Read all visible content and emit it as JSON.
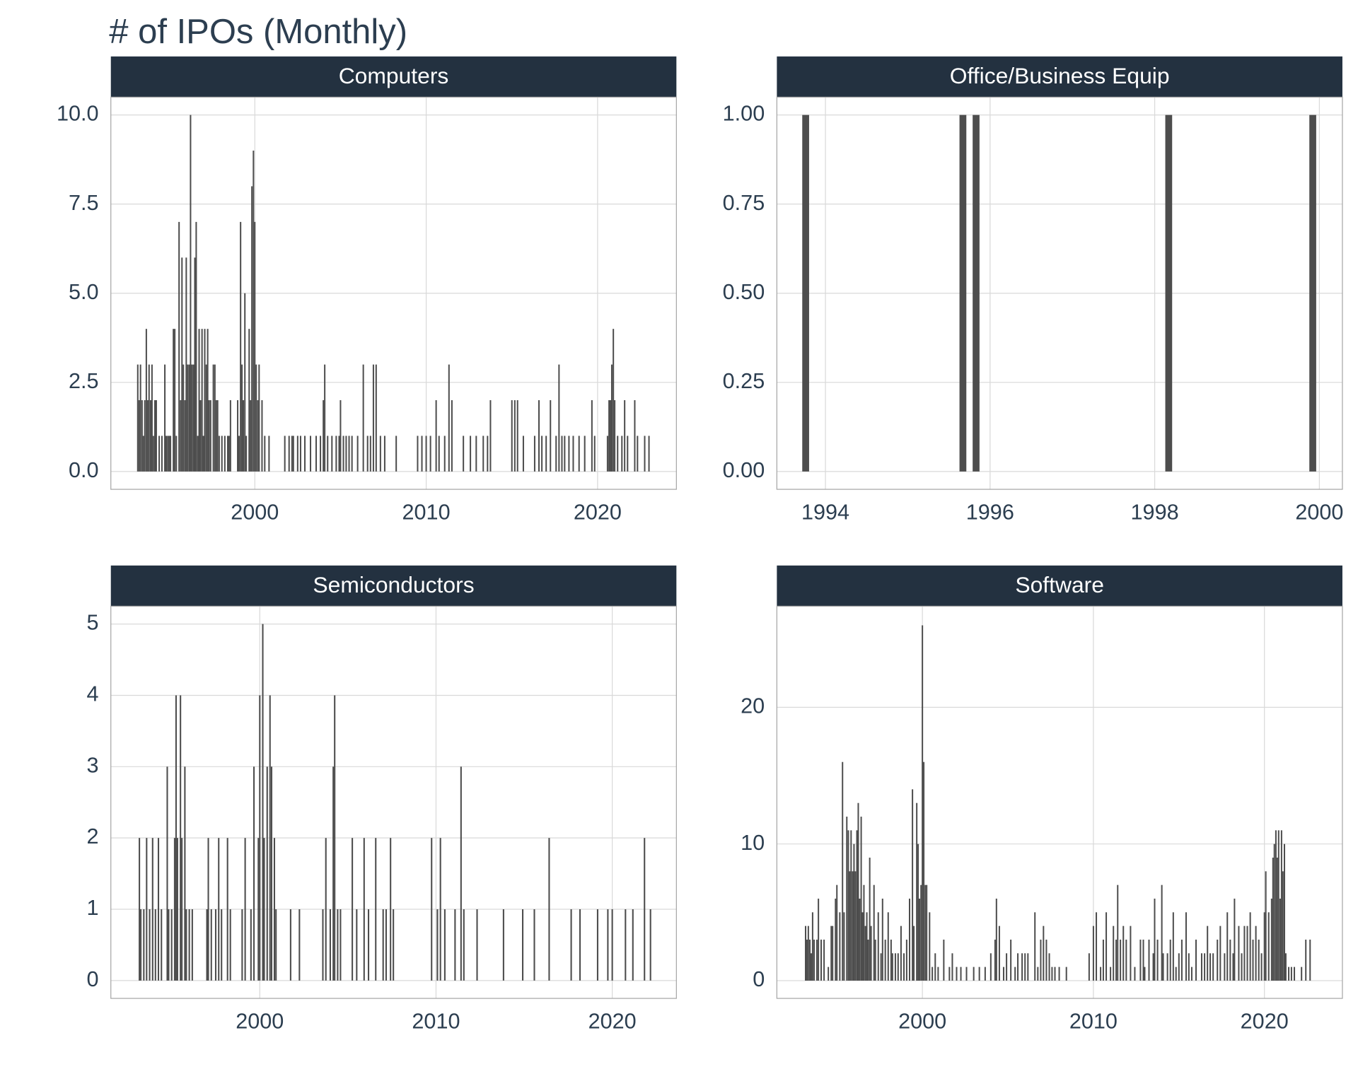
{
  "title": "# of IPOs (Monthly)",
  "chart_data": [
    {
      "type": "bar",
      "title": "Computers",
      "color": "#4d4d4d",
      "grid": true,
      "xlim": [
        1991.6,
        2024.6
      ],
      "xticks": [
        2000,
        2010,
        2020
      ],
      "ylim": [
        -0.5,
        10.5
      ],
      "yticks": [
        {
          "value": 0,
          "label": "0.0"
        },
        {
          "value": 2.5,
          "label": "2.5"
        },
        {
          "value": 5,
          "label": "5.0"
        },
        {
          "value": 7.5,
          "label": "7.5"
        },
        {
          "value": 10,
          "label": "10.0"
        }
      ],
      "x": [
        1993.17,
        1993.25,
        1993.33,
        1993.42,
        1993.5,
        1993.58,
        1993.67,
        1993.75,
        1993.83,
        1993.92,
        1994.0,
        1994.08,
        1994.17,
        1994.25,
        1994.42,
        1994.58,
        1994.75,
        1994.83,
        1994.92,
        1995.0,
        1995.08,
        1995.25,
        1995.33,
        1995.42,
        1995.58,
        1995.67,
        1995.75,
        1995.83,
        1995.92,
        1996.0,
        1996.08,
        1996.17,
        1996.25,
        1996.33,
        1996.42,
        1996.5,
        1996.58,
        1996.67,
        1996.75,
        1996.83,
        1996.92,
        1997.0,
        1997.08,
        1997.17,
        1997.25,
        1997.33,
        1997.42,
        1997.58,
        1997.67,
        1997.75,
        1997.83,
        1997.92,
        1998.08,
        1998.25,
        1998.42,
        1998.5,
        1998.58,
        1999.0,
        1999.08,
        1999.17,
        1999.25,
        1999.33,
        1999.42,
        1999.5,
        1999.67,
        1999.75,
        1999.83,
        1999.92,
        2000.0,
        2000.08,
        2000.17,
        2000.25,
        2000.42,
        2000.58,
        2000.83,
        2001.75,
        2002.0,
        2002.17,
        2002.25,
        2002.5,
        2002.67,
        2002.92,
        2003.25,
        2003.58,
        2003.83,
        2004.0,
        2004.08,
        2004.25,
        2004.5,
        2004.75,
        2004.92,
        2005.0,
        2005.17,
        2005.33,
        2005.5,
        2005.67,
        2006.0,
        2006.33,
        2006.58,
        2006.75,
        2006.92,
        2007.08,
        2007.33,
        2007.58,
        2008.25,
        2009.5,
        2009.75,
        2010.0,
        2010.25,
        2010.58,
        2010.75,
        2011.08,
        2011.33,
        2011.5,
        2012.17,
        2012.58,
        2012.92,
        2013.33,
        2013.58,
        2013.75,
        2015.0,
        2015.17,
        2015.33,
        2015.67,
        2016.33,
        2016.58,
        2016.75,
        2017.0,
        2017.25,
        2017.58,
        2017.75,
        2017.92,
        2018.08,
        2018.33,
        2018.58,
        2018.92,
        2019.25,
        2019.67,
        2019.83,
        2020.58,
        2020.67,
        2020.75,
        2020.83,
        2020.92,
        2021.0,
        2021.17,
        2021.42,
        2021.58,
        2021.75,
        2022.17,
        2022.33,
        2022.75,
        2023.0
      ],
      "values": [
        3,
        2,
        3,
        2,
        1,
        2,
        4,
        2,
        3,
        2,
        3,
        1,
        2,
        2,
        1,
        1,
        3,
        1,
        1,
        1,
        1,
        4,
        4,
        1,
        7,
        2,
        6,
        3,
        2,
        6,
        3,
        3,
        10,
        3,
        3,
        6,
        7,
        1,
        4,
        2,
        4,
        1,
        4,
        3,
        4,
        2,
        2,
        3,
        3,
        2,
        2,
        1,
        1,
        1,
        1,
        1,
        2,
        2,
        1,
        7,
        3,
        2,
        5,
        1,
        4,
        2,
        8,
        9,
        7,
        3,
        2,
        3,
        2,
        1,
        1,
        1,
        1,
        1,
        1,
        1,
        1,
        1,
        1,
        1,
        1,
        2,
        3,
        1,
        1,
        1,
        1,
        2,
        1,
        1,
        1,
        1,
        1,
        3,
        1,
        1,
        3,
        3,
        1,
        1,
        1,
        1,
        1,
        1,
        1,
        2,
        1,
        1,
        3,
        2,
        1,
        1,
        1,
        1,
        1,
        2,
        2,
        2,
        2,
        1,
        1,
        2,
        1,
        1,
        2,
        1,
        3,
        1,
        1,
        1,
        1,
        1,
        1,
        2,
        1,
        1,
        2,
        2,
        3,
        4,
        2,
        1,
        1,
        2,
        1,
        2,
        1,
        1,
        1
      ]
    },
    {
      "type": "bar",
      "title": "Office/Business Equip",
      "color": "#4d4d4d",
      "grid": true,
      "xlim": [
        1993.41,
        2000.28
      ],
      "xticks": [
        1994,
        1996,
        1998,
        2000
      ],
      "ylim": [
        -0.05,
        1.05
      ],
      "yticks": [
        {
          "value": 0,
          "label": "0.00"
        },
        {
          "value": 0.25,
          "label": "0.25"
        },
        {
          "value": 0.5,
          "label": "0.50"
        },
        {
          "value": 0.75,
          "label": "0.75"
        },
        {
          "value": 1,
          "label": "1.00"
        }
      ],
      "x": [
        1993.76,
        1995.67,
        1995.83,
        1998.17,
        1999.92
      ],
      "values": [
        1,
        1,
        1,
        1,
        1
      ]
    },
    {
      "type": "bar",
      "title": "Semiconductors",
      "color": "#4d4d4d",
      "grid": true,
      "xlim": [
        1991.55,
        2023.64
      ],
      "xticks": [
        2000,
        2010,
        2020
      ],
      "ylim": [
        -0.25,
        5.25
      ],
      "yticks": [
        0,
        1,
        2,
        3,
        4,
        5
      ],
      "x": [
        1993.17,
        1993.25,
        1993.42,
        1993.58,
        1993.75,
        1993.92,
        1994.08,
        1994.25,
        1994.42,
        1994.75,
        1994.83,
        1995.0,
        1995.17,
        1995.25,
        1995.33,
        1995.5,
        1995.58,
        1995.75,
        1995.83,
        1996.0,
        1996.17,
        1997.0,
        1997.08,
        1997.25,
        1997.5,
        1997.67,
        1997.83,
        1998.17,
        1998.33,
        1999.0,
        1999.17,
        1999.5,
        1999.67,
        1999.92,
        2000.0,
        2000.17,
        2000.25,
        2000.42,
        2000.58,
        2000.67,
        2000.83,
        2000.92,
        2001.75,
        2002.25,
        2003.58,
        2003.75,
        2004.0,
        2004.17,
        2004.25,
        2004.42,
        2004.58,
        2005.25,
        2005.5,
        2005.92,
        2006.17,
        2006.58,
        2007.0,
        2007.17,
        2007.42,
        2007.58,
        2009.75,
        2010.08,
        2010.25,
        2010.5,
        2011.08,
        2011.42,
        2011.58,
        2012.33,
        2013.83,
        2014.92,
        2015.58,
        2016.42,
        2017.67,
        2018.17,
        2019.17,
        2019.75,
        2020.0,
        2020.75,
        2021.17,
        2021.83,
        2022.17
      ],
      "values": [
        2,
        1,
        1,
        2,
        1,
        2,
        1,
        2,
        1,
        3,
        1,
        1,
        2,
        4,
        2,
        4,
        2,
        3,
        1,
        1,
        1,
        1,
        2,
        1,
        1,
        2,
        1,
        2,
        1,
        1,
        2,
        1,
        3,
        2,
        4,
        5,
        2,
        3,
        4,
        3,
        2,
        1,
        1,
        1,
        1,
        2,
        1,
        3,
        4,
        1,
        1,
        2,
        1,
        2,
        1,
        2,
        1,
        1,
        2,
        1,
        2,
        1,
        2,
        1,
        1,
        3,
        1,
        1,
        1,
        1,
        1,
        2,
        1,
        1,
        1,
        1,
        1,
        1,
        1,
        2,
        1
      ]
    },
    {
      "type": "bar",
      "title": "Software",
      "color": "#4d4d4d",
      "grid": true,
      "xlim": [
        1991.49,
        2024.56
      ],
      "xticks": [
        2000,
        2010,
        2020
      ],
      "ylim": [
        -1.3,
        27.4
      ],
      "yticks": [
        0,
        10,
        20
      ],
      "x": [
        1993.17,
        1993.25,
        1993.33,
        1993.42,
        1993.5,
        1993.58,
        1993.67,
        1993.83,
        1993.92,
        1994.08,
        1994.25,
        1994.5,
        1994.67,
        1994.75,
        1994.92,
        1995.0,
        1995.17,
        1995.33,
        1995.42,
        1995.58,
        1995.67,
        1995.75,
        1995.83,
        1995.92,
        1996.0,
        1996.08,
        1996.17,
        1996.25,
        1996.33,
        1996.42,
        1996.5,
        1996.58,
        1996.67,
        1996.75,
        1996.83,
        1996.92,
        1997.0,
        1997.17,
        1997.25,
        1997.42,
        1997.58,
        1997.67,
        1997.83,
        1998.0,
        1998.17,
        1998.25,
        1998.42,
        1998.58,
        1998.75,
        1998.92,
        1999.08,
        1999.25,
        1999.42,
        1999.5,
        1999.67,
        1999.75,
        1999.83,
        1999.92,
        2000.0,
        2000.08,
        2000.17,
        2000.25,
        2000.42,
        2000.58,
        2000.75,
        2000.92,
        2001.25,
        2001.58,
        2001.75,
        2002.0,
        2002.25,
        2002.58,
        2003.0,
        2003.33,
        2003.67,
        2004.0,
        2004.25,
        2004.33,
        2004.5,
        2004.75,
        2004.92,
        2005.17,
        2005.42,
        2005.58,
        2005.83,
        2006.0,
        2006.17,
        2006.58,
        2006.75,
        2006.92,
        2007.08,
        2007.25,
        2007.42,
        2007.58,
        2007.75,
        2008.0,
        2008.42,
        2009.75,
        2010.0,
        2010.17,
        2010.42,
        2010.58,
        2010.75,
        2011.0,
        2011.17,
        2011.33,
        2011.42,
        2011.58,
        2011.75,
        2011.92,
        2012.17,
        2012.42,
        2012.75,
        2012.92,
        2013.0,
        2013.25,
        2013.5,
        2013.58,
        2013.75,
        2014.0,
        2014.08,
        2014.33,
        2014.5,
        2014.67,
        2014.83,
        2015.0,
        2015.17,
        2015.42,
        2015.58,
        2015.75,
        2016.0,
        2016.33,
        2016.5,
        2016.67,
        2016.83,
        2017.0,
        2017.25,
        2017.42,
        2017.67,
        2017.83,
        2018.0,
        2018.17,
        2018.25,
        2018.5,
        2018.67,
        2018.83,
        2019.0,
        2019.17,
        2019.33,
        2019.5,
        2019.67,
        2019.83,
        2020.0,
        2020.08,
        2020.25,
        2020.42,
        2020.5,
        2020.58,
        2020.67,
        2020.75,
        2020.83,
        2020.92,
        2021.0,
        2021.08,
        2021.17,
        2021.25,
        2021.42,
        2021.58,
        2021.75,
        2022.17,
        2022.42,
        2022.67
      ],
      "values": [
        4,
        3,
        4,
        3,
        2,
        5,
        3,
        3,
        6,
        3,
        3,
        1,
        4,
        4,
        6,
        7,
        5,
        16,
        5,
        12,
        11,
        8,
        11,
        8,
        10,
        8,
        11,
        13,
        6,
        12,
        5,
        7,
        4,
        5,
        3,
        9,
        4,
        7,
        3,
        5,
        2,
        6,
        3,
        5,
        3,
        2,
        2,
        2,
        4,
        2,
        3,
        6,
        14,
        4,
        13,
        10,
        6,
        7,
        26,
        16,
        7,
        7,
        5,
        1,
        2,
        1,
        3,
        1,
        2,
        1,
        1,
        1,
        1,
        1,
        1,
        2,
        3,
        6,
        4,
        1,
        2,
        3,
        1,
        2,
        2,
        2,
        2,
        5,
        1,
        3,
        4,
        3,
        2,
        1,
        1,
        1,
        1,
        2,
        4,
        5,
        1,
        3,
        5,
        1,
        4,
        3,
        7,
        3,
        4,
        3,
        4,
        1,
        3,
        3,
        1,
        3,
        2,
        6,
        3,
        7,
        2,
        2,
        3,
        5,
        1,
        2,
        3,
        5,
        2,
        1,
        3,
        2,
        2,
        4,
        2,
        2,
        3,
        4,
        2,
        5,
        3,
        2,
        6,
        4,
        2,
        4,
        4,
        5,
        3,
        4,
        3,
        2,
        5,
        8,
        5,
        6,
        9,
        10,
        11,
        9,
        11,
        6,
        11,
        8,
        10,
        2,
        1,
        1,
        1,
        1,
        3,
        3
      ]
    }
  ]
}
